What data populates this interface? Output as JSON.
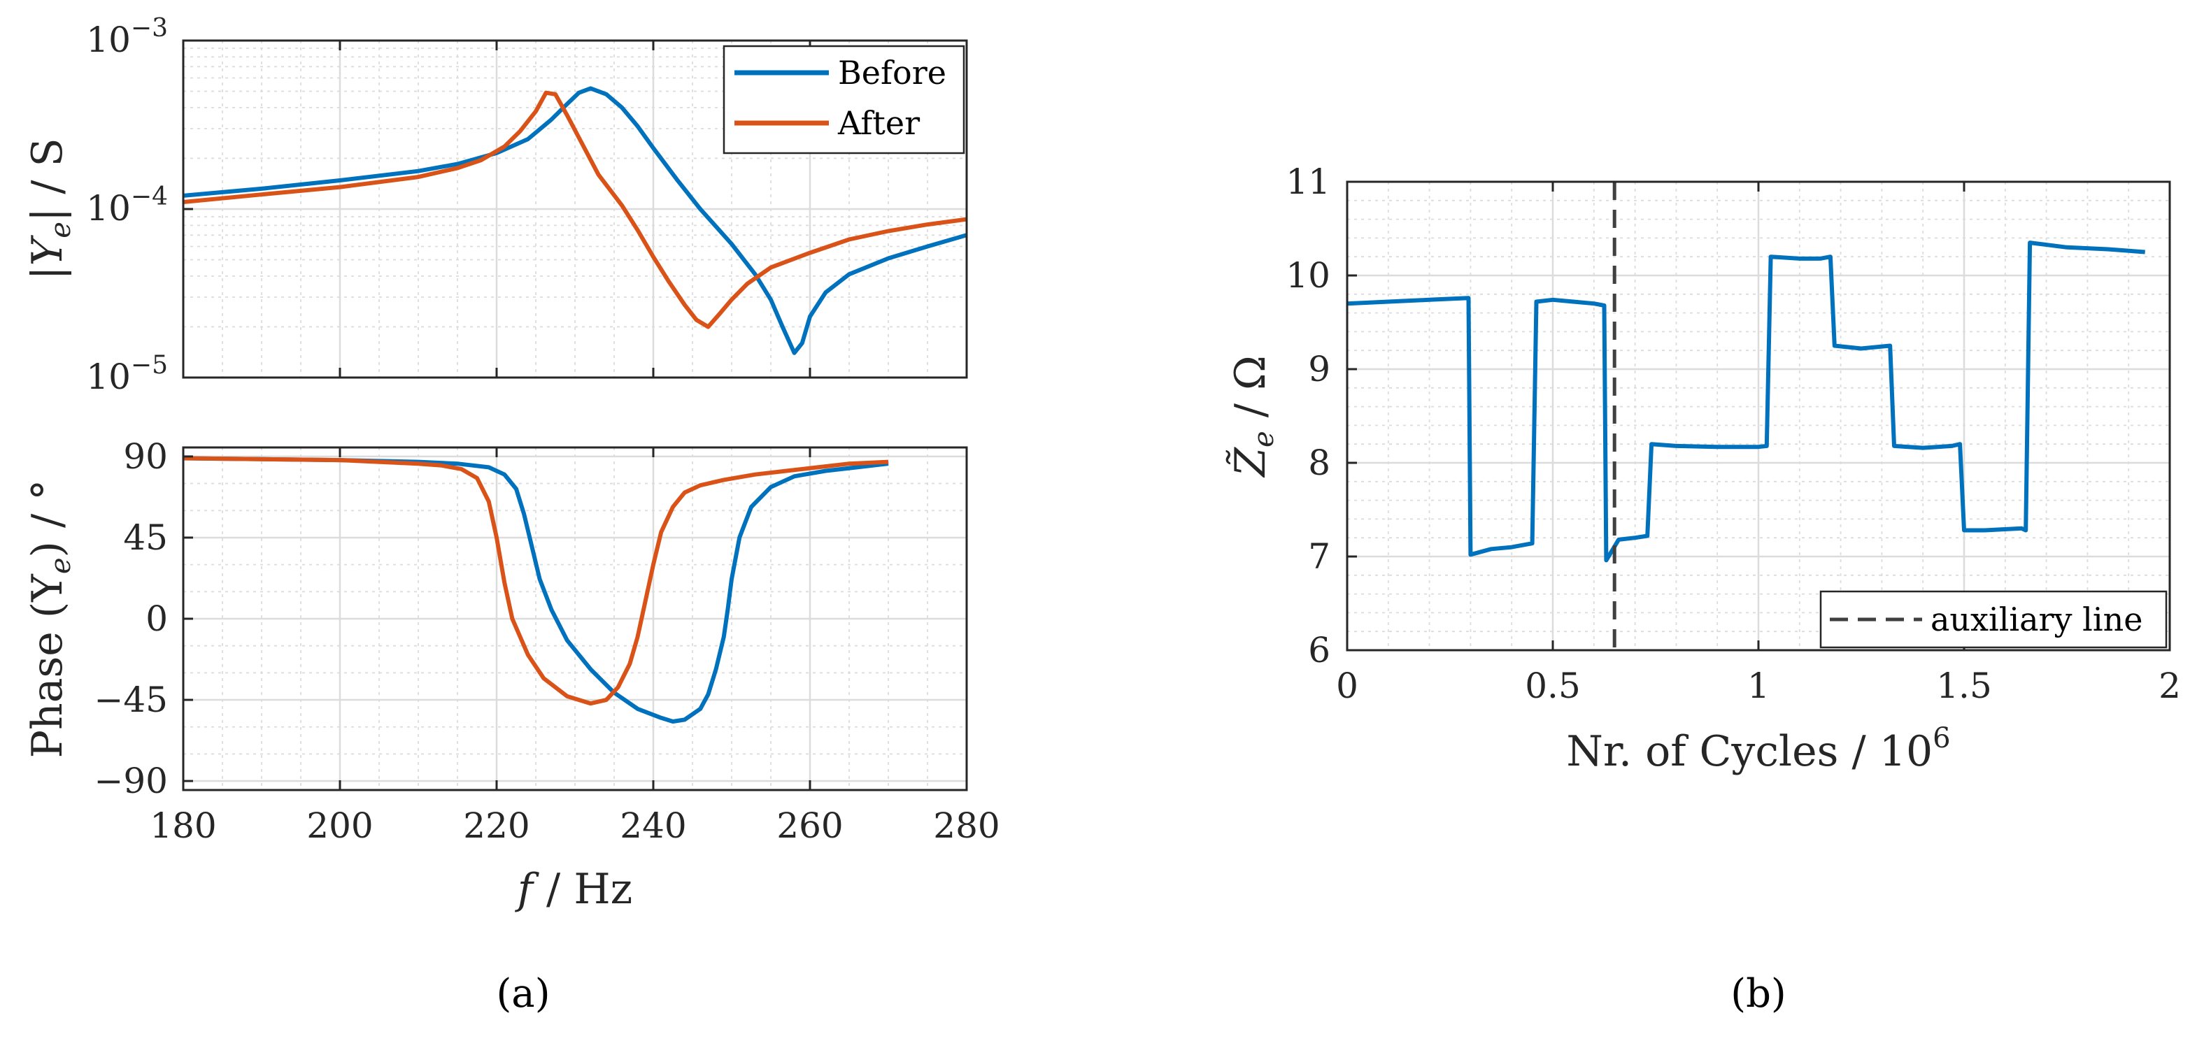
{
  "colors": {
    "before": "#0072BD",
    "after": "#D95319",
    "aux": "#404040",
    "grid": "#dcdcdc",
    "axis": "#262626"
  },
  "panels": {
    "a": "(a)",
    "b": "(b)"
  },
  "chart_data": [
    {
      "id": "mag",
      "type": "line",
      "yscale": "log",
      "xlim": [
        180,
        280
      ],
      "ylim": [
        1e-05,
        0.001
      ],
      "xticks": [
        180,
        200,
        220,
        240,
        260,
        280
      ],
      "xlabel": "",
      "ylabel_parts": [
        "|Y",
        "e",
        "| / S"
      ],
      "yticks": [
        {
          "value": 0.001,
          "base": "10",
          "exp": "−3"
        },
        {
          "value": 0.0001,
          "base": "10",
          "exp": "−4"
        },
        {
          "value": 1e-05,
          "base": "10",
          "exp": "−5"
        }
      ],
      "legend": {
        "position": "top-right",
        "entries": [
          "Before",
          "After"
        ]
      },
      "series": [
        {
          "name": "Before",
          "x": [
            180,
            190,
            200,
            210,
            215,
            220,
            224,
            227,
            229,
            230.5,
            232,
            234,
            236,
            238,
            240,
            243,
            246,
            250,
            253,
            255,
            256.5,
            258,
            259,
            260,
            262,
            265,
            270,
            275,
            280
          ],
          "y": [
            0.00012,
            0.000132,
            0.000148,
            0.000168,
            0.000185,
            0.000215,
            0.00026,
            0.00034,
            0.00042,
            0.00049,
            0.00052,
            0.00048,
            0.0004,
            0.00031,
            0.00023,
            0.00015,
            0.0001,
            6.2e-05,
            4.1e-05,
            2.9e-05,
            2e-05,
            1.4e-05,
            1.6e-05,
            2.3e-05,
            3.2e-05,
            4.1e-05,
            5.1e-05,
            6e-05,
            7e-05
          ]
        },
        {
          "name": "After",
          "x": [
            180,
            190,
            200,
            210,
            215,
            218,
            221,
            223,
            225,
            226.3,
            227.5,
            229,
            231,
            233,
            236,
            238,
            240,
            242,
            244,
            245.5,
            247,
            248.5,
            250,
            252,
            255,
            260,
            265,
            270,
            275,
            280
          ],
          "y": [
            0.00011,
            0.000122,
            0.000135,
            0.000155,
            0.000175,
            0.000195,
            0.000235,
            0.00029,
            0.00038,
            0.00049,
            0.00048,
            0.00036,
            0.00024,
            0.00016,
            0.000105,
            7.5e-05,
            5.2e-05,
            3.7e-05,
            2.7e-05,
            2.2e-05,
            2e-05,
            2.4e-05,
            2.9e-05,
            3.6e-05,
            4.5e-05,
            5.5e-05,
            6.6e-05,
            7.4e-05,
            8.1e-05,
            8.7e-05
          ]
        }
      ]
    },
    {
      "id": "phase",
      "type": "line",
      "xlim": [
        180,
        280
      ],
      "ylim": [
        -95,
        95
      ],
      "xticks": [
        180,
        200,
        220,
        240,
        260,
        280
      ],
      "yticks": [
        90,
        45,
        0,
        -45,
        -90
      ],
      "ytick_labels": [
        "90",
        "45",
        "0",
        "−45",
        "−90"
      ],
      "xlabel_parts": [
        "f",
        " / Hz"
      ],
      "ylabel_parts": [
        "Phase (Y",
        "e",
        ") / °"
      ],
      "series": [
        {
          "name": "Before",
          "x": [
            180,
            190,
            200,
            210,
            215,
            219,
            221,
            222.5,
            223.5,
            224.5,
            225.5,
            227,
            229,
            232,
            235,
            238,
            241,
            242.5,
            244,
            246,
            247,
            248,
            249,
            249.5,
            250,
            251,
            252.5,
            255,
            258,
            262,
            266,
            270
          ],
          "y": [
            89,
            88.5,
            88,
            87,
            86,
            84,
            80,
            72,
            58,
            40,
            22,
            5,
            -12,
            -28,
            -41,
            -50,
            -55,
            -57,
            -56,
            -50,
            -42,
            -28,
            -10,
            5,
            22,
            45,
            62,
            73,
            79,
            82,
            84,
            86
          ]
        },
        {
          "name": "After",
          "x": [
            180,
            190,
            200,
            210,
            213,
            215.5,
            217.5,
            219,
            220,
            221,
            222,
            224,
            226,
            229,
            232,
            234,
            235.5,
            237,
            238,
            239,
            240,
            241,
            242.5,
            244,
            246,
            249,
            253,
            257,
            261,
            265,
            270
          ],
          "y": [
            89,
            88.5,
            88,
            86,
            85,
            83,
            78,
            65,
            45,
            20,
            0,
            -20,
            -33,
            -43,
            -47,
            -45,
            -38,
            -25,
            -10,
            10,
            30,
            48,
            62,
            70,
            74,
            77,
            80,
            82,
            84,
            86,
            87
          ]
        }
      ]
    },
    {
      "id": "zcycles",
      "type": "line",
      "xlim": [
        0,
        2
      ],
      "ylim": [
        6,
        11
      ],
      "xticks": [
        0,
        0.5,
        1,
        1.5,
        2
      ],
      "xtick_labels": [
        "0",
        "0.5",
        "1",
        "1.5",
        "2"
      ],
      "yticks": [
        6,
        7,
        8,
        9,
        10,
        11
      ],
      "xlabel_base": "Nr. of Cycles / 10",
      "xlabel_exp": "6",
      "ylabel_parts": [
        "Z̃",
        "e",
        " / Ω"
      ],
      "legend": {
        "position": "bottom-right",
        "entries": [
          "auxiliary line"
        ]
      },
      "aux_line_x": 0.65,
      "series": [
        {
          "name": "Z_e",
          "x": [
            0,
            0.1,
            0.2,
            0.295,
            0.3,
            0.35,
            0.4,
            0.45,
            0.46,
            0.5,
            0.55,
            0.6,
            0.625,
            0.63,
            0.66,
            0.7,
            0.73,
            0.74,
            0.8,
            0.9,
            1.0,
            1.02,
            1.03,
            1.1,
            1.15,
            1.175,
            1.185,
            1.25,
            1.32,
            1.33,
            1.4,
            1.47,
            1.49,
            1.5,
            1.55,
            1.64,
            1.65,
            1.66,
            1.75,
            1.85,
            1.94
          ],
          "y": [
            9.7,
            9.72,
            9.74,
            9.76,
            7.02,
            7.08,
            7.1,
            7.14,
            9.72,
            9.74,
            9.72,
            9.7,
            9.68,
            6.96,
            7.18,
            7.2,
            7.22,
            8.2,
            8.18,
            8.17,
            8.17,
            8.18,
            10.2,
            10.18,
            10.18,
            10.2,
            9.25,
            9.22,
            9.25,
            8.18,
            8.16,
            8.18,
            8.2,
            7.28,
            7.28,
            7.3,
            7.28,
            10.35,
            10.3,
            10.28,
            10.25
          ]
        }
      ]
    }
  ]
}
